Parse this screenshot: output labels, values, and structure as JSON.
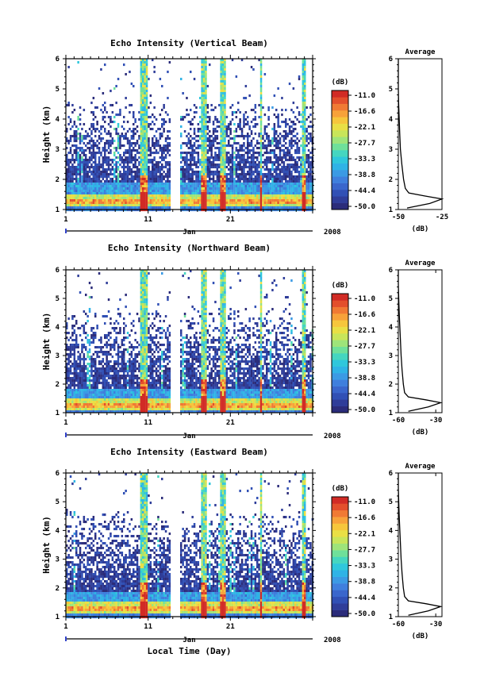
{
  "colors": {
    "scale": [
      "#2b2c7a",
      "#2f3d99",
      "#3150b5",
      "#3a66cc",
      "#3f7fdd",
      "#3b9ae4",
      "#2fb3e6",
      "#2fc7dc",
      "#45d6c0",
      "#6fe09a",
      "#9ee47a",
      "#c8e55a",
      "#e9df45",
      "#f6c63c",
      "#f7a23a",
      "#f07a34",
      "#e34f2c",
      "#d12b25"
    ],
    "line": "#000000"
  },
  "chart_data": [
    {
      "type": "heatmap",
      "title": "Echo Intensity (Vertical Beam)",
      "ylabel": "Height (km)",
      "ylim": [
        1,
        6
      ],
      "yticks": [
        "1",
        "2",
        "3",
        "4",
        "5",
        "6"
      ],
      "xticks": [
        "1",
        "11",
        "21"
      ],
      "xlim": [
        1,
        31
      ],
      "month_label": "Jan",
      "year_label": "2008",
      "colorbar": {
        "unit": "(dB)",
        "ticks": [
          "-11.0",
          "-16.6",
          "-22.1",
          "-27.7",
          "-33.3",
          "-38.8",
          "-44.4",
          "-50.0"
        ],
        "range": [
          -50.0,
          -11.0
        ]
      },
      "average_profile": {
        "title": "Average",
        "xlabel": "(dB)",
        "xticks": [
          "-50",
          "-25"
        ],
        "xlim": [
          -50,
          -25
        ],
        "ylim": [
          1,
          6
        ],
        "yticks": [
          "1",
          "2",
          "3",
          "4",
          "5",
          "6"
        ],
        "height_km": [
          1.05,
          1.2,
          1.35,
          1.45,
          1.55,
          1.7,
          2.0,
          2.5,
          3.0,
          3.5,
          4.0,
          4.5,
          5.0,
          5.5,
          6.0
        ],
        "db": [
          -45,
          -32,
          -24,
          -35,
          -44,
          -46,
          -47,
          -48,
          -48.8,
          -49.2,
          -49.5,
          -49.8,
          -50,
          -50,
          -50
        ]
      }
    },
    {
      "type": "heatmap",
      "title": "Echo Intensity (Northward Beam)",
      "ylabel": "Height (km)",
      "ylim": [
        1,
        6
      ],
      "yticks": [
        "1",
        "2",
        "3",
        "4",
        "5",
        "6"
      ],
      "xticks": [
        "1",
        "11",
        "21"
      ],
      "xlim": [
        1,
        31
      ],
      "month_label": "Jan",
      "year_label": "2008",
      "colorbar": {
        "unit": "(dB)",
        "ticks": [
          "-11.0",
          "-16.6",
          "-22.1",
          "-27.7",
          "-33.3",
          "-38.8",
          "-44.4",
          "-50.0"
        ],
        "range": [
          -50.0,
          -11.0
        ]
      },
      "average_profile": {
        "title": "Average",
        "xlabel": "(dB)",
        "xticks": [
          "-60",
          "-30"
        ],
        "xlim": [
          -60,
          -25
        ],
        "ylim": [
          1,
          6
        ],
        "yticks": [
          "1",
          "2",
          "3",
          "4",
          "5",
          "6"
        ],
        "height_km": [
          1.05,
          1.2,
          1.35,
          1.45,
          1.55,
          1.7,
          2.0,
          2.5,
          3.0,
          3.5,
          4.0,
          4.5,
          5.0,
          5.5,
          6.0
        ],
        "db": [
          -52,
          -36,
          -26,
          -38,
          -52,
          -55,
          -56,
          -57,
          -57.8,
          -58.3,
          -58.8,
          -59.3,
          -59.7,
          -60,
          -60
        ]
      }
    },
    {
      "type": "heatmap",
      "title": "Echo Intensity (Eastward Beam)",
      "ylabel": "Height (km)",
      "xlabel": "Local Time (Day)",
      "ylim": [
        1,
        6
      ],
      "yticks": [
        "1",
        "2",
        "3",
        "4",
        "5",
        "6"
      ],
      "xticks": [
        "1",
        "11",
        "21"
      ],
      "xlim": [
        1,
        31
      ],
      "month_label": "Jan",
      "year_label": "2008",
      "colorbar": {
        "unit": "(dB)",
        "ticks": [
          "-11.0",
          "-16.6",
          "-22.1",
          "-27.7",
          "-33.3",
          "-38.8",
          "-44.4",
          "-50.0"
        ],
        "range": [
          -50.0,
          -11.0
        ]
      },
      "average_profile": {
        "title": "Average",
        "xlabel": "(dB)",
        "xticks": [
          "-60",
          "-30"
        ],
        "xlim": [
          -60,
          -25
        ],
        "ylim": [
          1,
          6
        ],
        "yticks": [
          "1",
          "2",
          "3",
          "4",
          "5",
          "6"
        ],
        "height_km": [
          1.05,
          1.2,
          1.35,
          1.45,
          1.55,
          1.7,
          2.0,
          2.5,
          3.0,
          3.5,
          4.0,
          4.5,
          5.0,
          5.5,
          6.0
        ],
        "db": [
          -52,
          -36,
          -26,
          -38,
          -52,
          -55,
          -56,
          -57,
          -57.8,
          -58.3,
          -58.8,
          -59.3,
          -59.7,
          -60,
          -60
        ]
      }
    }
  ]
}
